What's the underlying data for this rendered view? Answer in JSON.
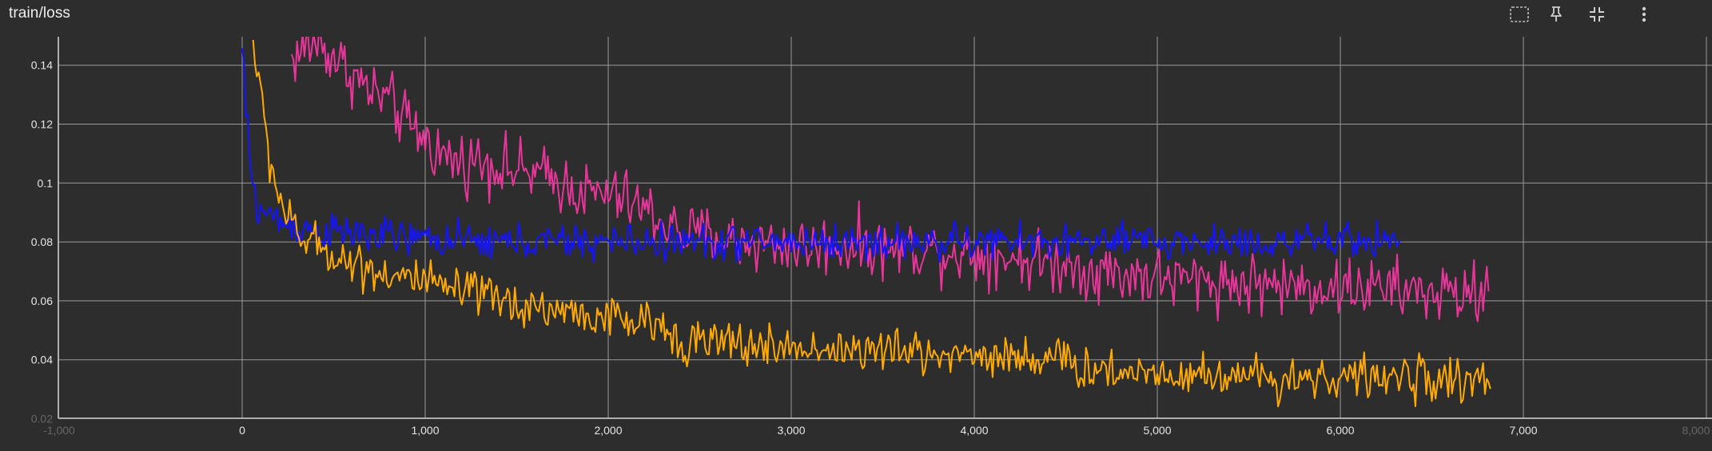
{
  "card": {
    "title": "train/loss"
  },
  "toolbar": {
    "buttons": [
      {
        "name": "fit-domain-icon",
        "tooltip": ""
      },
      {
        "name": "pin-icon",
        "tooltip": ""
      },
      {
        "name": "collapse-icon",
        "tooltip": ""
      },
      {
        "name": "more-vert-icon",
        "tooltip": ""
      }
    ]
  },
  "colors": {
    "background": "#2d2d2d",
    "grid": "#9a9a9a",
    "axis": "#d8d8d8",
    "series_pink": "#e8359a",
    "series_blue": "#1414ff",
    "series_orange": "#ffaa00"
  },
  "chart_data": {
    "type": "line",
    "title": "train/loss",
    "xlabel": "",
    "ylabel": "",
    "xlim": [
      -1000,
      8000
    ],
    "ylim": [
      0.02,
      0.15
    ],
    "grid": true,
    "x_ticks": [
      {
        "value": -1000,
        "label": "-1,000",
        "faint": true
      },
      {
        "value": 0,
        "label": "0"
      },
      {
        "value": 1000,
        "label": "1,000"
      },
      {
        "value": 2000,
        "label": "2,000"
      },
      {
        "value": 3000,
        "label": "3,000"
      },
      {
        "value": 4000,
        "label": "4,000"
      },
      {
        "value": 5000,
        "label": "5,000"
      },
      {
        "value": 6000,
        "label": "6,000"
      },
      {
        "value": 7000,
        "label": "7,000"
      },
      {
        "value": 8000,
        "label": "8,000",
        "faint": true
      }
    ],
    "y_ticks": [
      {
        "value": 0.02,
        "label": "0.02",
        "faint": true
      },
      {
        "value": 0.04,
        "label": "0.04"
      },
      {
        "value": 0.06,
        "label": "0.06"
      },
      {
        "value": 0.08,
        "label": "0.08"
      },
      {
        "value": 0.1,
        "label": "0.1"
      },
      {
        "value": 0.12,
        "label": "0.12"
      },
      {
        "value": 0.14,
        "label": "0.14"
      }
    ],
    "series": [
      {
        "color": "#e8359a",
        "x": [
          270,
          400,
          500,
          600,
          700,
          800,
          900,
          1000,
          1100,
          1200,
          1300,
          1400,
          1500,
          1600,
          1700,
          1800,
          1900,
          2000,
          2100,
          2200,
          2300,
          2400,
          2500,
          2600,
          2700,
          2800,
          2900,
          3000,
          3100,
          3200,
          3300,
          3400,
          3500,
          3600,
          3700,
          3800,
          3900,
          4000,
          4100,
          4200,
          4300,
          4400,
          4500,
          4600,
          4700,
          4800,
          4900,
          5000,
          5100,
          5200,
          5300,
          5400,
          5500,
          5600,
          5700,
          5800,
          5900,
          6000,
          6100,
          6200,
          6300,
          6400,
          6500,
          6600,
          6700,
          6810
        ],
        "y": [
          0.142,
          0.148,
          0.143,
          0.137,
          0.131,
          0.128,
          0.12,
          0.115,
          0.109,
          0.107,
          0.108,
          0.106,
          0.104,
          0.103,
          0.101,
          0.099,
          0.096,
          0.096,
          0.094,
          0.091,
          0.087,
          0.083,
          0.082,
          0.082,
          0.08,
          0.08,
          0.079,
          0.079,
          0.078,
          0.079,
          0.079,
          0.079,
          0.078,
          0.078,
          0.078,
          0.077,
          0.077,
          0.076,
          0.076,
          0.075,
          0.074,
          0.073,
          0.073,
          0.071,
          0.07,
          0.069,
          0.069,
          0.068,
          0.067,
          0.067,
          0.067,
          0.066,
          0.066,
          0.066,
          0.065,
          0.065,
          0.065,
          0.064,
          0.065,
          0.064,
          0.064,
          0.063,
          0.063,
          0.062,
          0.062,
          0.064
        ],
        "noise": 0.009
      },
      {
        "color": "#1414ff",
        "x": [
          0,
          40,
          80,
          120,
          160,
          200,
          300,
          400,
          500,
          600,
          700,
          800,
          900,
          1000,
          1100,
          1200,
          1300,
          1400,
          1500,
          1600,
          1700,
          1800,
          1900,
          2000,
          2200,
          2400,
          2600,
          2800,
          3000,
          3200,
          3400,
          3600,
          3800,
          4000,
          4200,
          4400,
          4600,
          4800,
          5000,
          5200,
          5400,
          5600,
          5800,
          6000,
          6200,
          6330
        ],
        "y": [
          0.145,
          0.108,
          0.092,
          0.09,
          0.089,
          0.087,
          0.085,
          0.084,
          0.083,
          0.083,
          0.082,
          0.082,
          0.081,
          0.081,
          0.081,
          0.08,
          0.08,
          0.08,
          0.08,
          0.08,
          0.08,
          0.08,
          0.08,
          0.08,
          0.08,
          0.08,
          0.08,
          0.08,
          0.08,
          0.08,
          0.08,
          0.08,
          0.08,
          0.08,
          0.08,
          0.08,
          0.08,
          0.08,
          0.08,
          0.08,
          0.08,
          0.08,
          0.08,
          0.08,
          0.081,
          0.081
        ],
        "noise": 0.0055
      },
      {
        "color": "#ffaa00",
        "x": [
          60,
          100,
          150,
          200,
          250,
          300,
          400,
          500,
          600,
          700,
          800,
          900,
          1000,
          1100,
          1200,
          1300,
          1400,
          1500,
          1600,
          1700,
          1800,
          1900,
          2000,
          2100,
          2200,
          2300,
          2400,
          2500,
          2600,
          2700,
          2800,
          2900,
          3000,
          3200,
          3400,
          3600,
          3800,
          4000,
          4200,
          4400,
          4600,
          4800,
          5000,
          5200,
          5400,
          5600,
          5800,
          6000,
          6200,
          6400,
          6600,
          6820
        ],
        "y": [
          0.148,
          0.13,
          0.108,
          0.096,
          0.088,
          0.082,
          0.079,
          0.076,
          0.073,
          0.071,
          0.069,
          0.068,
          0.066,
          0.064,
          0.063,
          0.062,
          0.06,
          0.059,
          0.058,
          0.057,
          0.056,
          0.055,
          0.054,
          0.053,
          0.052,
          0.051,
          0.047,
          0.046,
          0.046,
          0.045,
          0.045,
          0.044,
          0.044,
          0.044,
          0.043,
          0.043,
          0.042,
          0.042,
          0.041,
          0.041,
          0.037,
          0.036,
          0.036,
          0.035,
          0.035,
          0.034,
          0.034,
          0.034,
          0.034,
          0.034,
          0.033,
          0.033
        ],
        "noise": 0.0065
      }
    ]
  }
}
